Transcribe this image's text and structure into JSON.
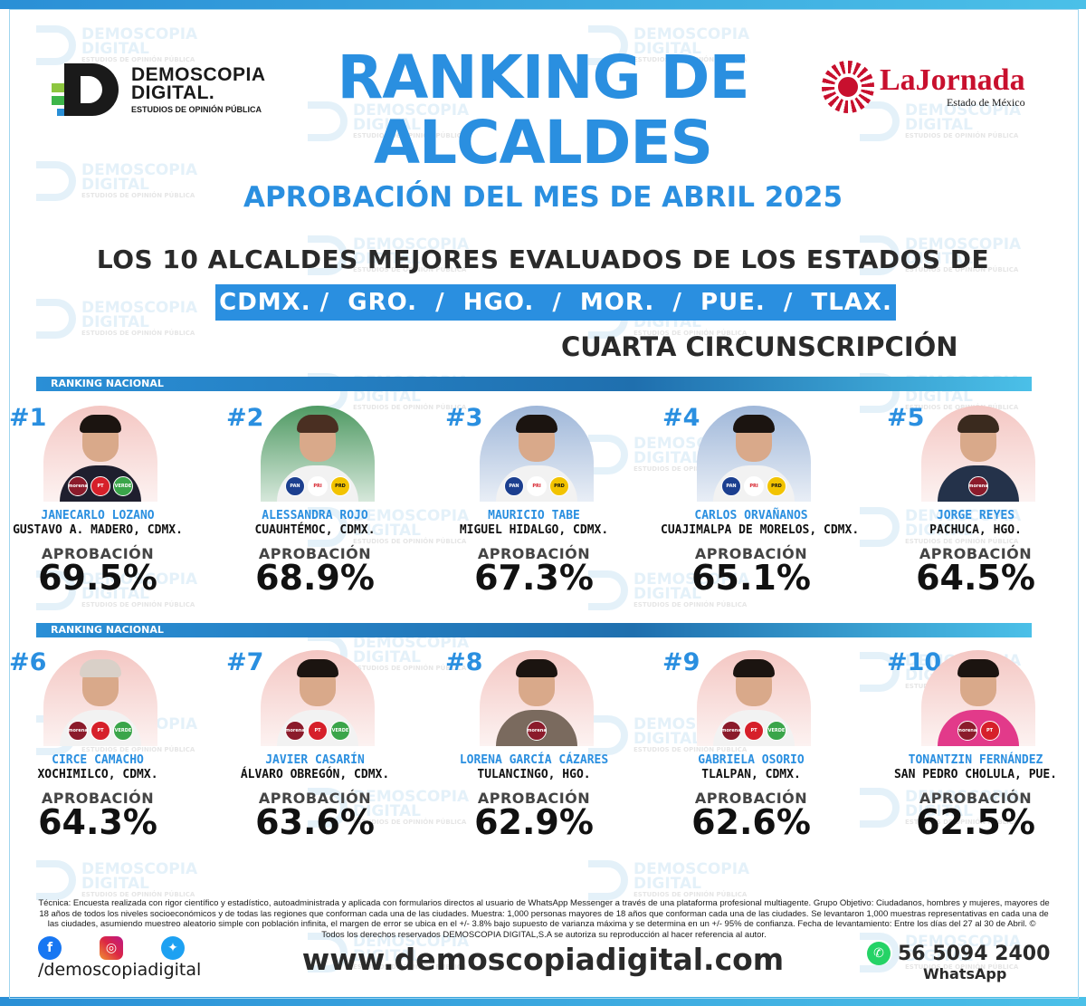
{
  "watermark": {
    "line1": "DEMOSCOPIA",
    "line2": "DIGITAL",
    "line3": "ESTUDIOS DE OPINIÓN PÚBLICA"
  },
  "logo_left": {
    "line1": "DEMOSCOPIA",
    "line2": "DIGITAL.",
    "line3": "ESTUDIOS DE OPINIÓN PÚBLICA"
  },
  "logo_right": {
    "name": "LaJornada",
    "sub": "Estado de México"
  },
  "header": {
    "title": "RANKING DE ALCALDES",
    "subtitle": "APROBACIÓN DEL MES DE ABRIL 2025",
    "headline": "LOS 10 ALCALDES MEJORES EVALUADOS DE LOS ESTADOS DE",
    "states": "CDMX. /  GRO.  /  HGO.  /  MOR.  /  PUE.  /  TLAX.",
    "circunscripcion": "CUARTA CIRCUNSCRIPCIÓN"
  },
  "ranking_label": "RANKING NACIONAL",
  "approval_label": "APROBACIÓN",
  "accent_color": "#2a8fe0",
  "mayors": [
    {
      "rank": "#1",
      "name": "JANECARLO LOZANO",
      "place": "GUSTAVO A. MADERO, CDMX.",
      "approval": "69.5%",
      "parties": [
        "morena",
        "PT",
        "VERDE"
      ]
    },
    {
      "rank": "#2",
      "name": "ALESSANDRA ROJO",
      "place": "CUAUHTÉMOC, CDMX.",
      "approval": "68.9%",
      "parties": [
        "PAN",
        "PRI",
        "PRD"
      ]
    },
    {
      "rank": "#3",
      "name": "MAURICIO TABE",
      "place": "MIGUEL HIDALGO, CDMX.",
      "approval": "67.3%",
      "parties": [
        "PAN",
        "PRI",
        "PRD"
      ]
    },
    {
      "rank": "#4",
      "name": "CARLOS ORVAÑANOS",
      "place": "CUAJIMALPA DE MORELOS, CDMX.",
      "approval": "65.1%",
      "parties": [
        "PAN",
        "PRI",
        "PRD"
      ]
    },
    {
      "rank": "#5",
      "name": "JORGE REYES",
      "place": "PACHUCA, HGO.",
      "approval": "64.5%",
      "parties": [
        "morena"
      ]
    },
    {
      "rank": "#6",
      "name": "CIRCE CAMACHO",
      "place": "XOCHIMILCO, CDMX.",
      "approval": "64.3%",
      "parties": [
        "morena",
        "PT",
        "VERDE"
      ]
    },
    {
      "rank": "#7",
      "name": "JAVIER CASARÍN",
      "place": "ÁLVARO OBREGÓN, CDMX.",
      "approval": "63.6%",
      "parties": [
        "morena",
        "PT",
        "VERDE"
      ]
    },
    {
      "rank": "#8",
      "name": "LORENA GARCÍA CÁZARES",
      "place": "TULANCINGO, HGO.",
      "approval": "62.9%",
      "parties": [
        "morena"
      ]
    },
    {
      "rank": "#9",
      "name": "GABRIELA OSORIO",
      "place": "TLALPAN, CDMX.",
      "approval": "62.6%",
      "parties": [
        "morena",
        "PT",
        "VERDE"
      ]
    },
    {
      "rank": "#10",
      "name": "TONANTZIN FERNÁNDEZ",
      "place": "SAN PEDRO CHOLULA, PUE.",
      "approval": "62.5%",
      "parties": [
        "morena",
        "PT"
      ]
    }
  ],
  "footer": {
    "technical": "Técnica: Encuesta realizada con rigor científico y estadístico, autoadministrada y aplicada con formularios directos al usuario de WhatsApp Messenger a través de una plataforma profesional multiagente. Grupo Objetivo: Ciudadanos, hombres y mujeres, mayores de 18 años de todos los niveles socioeconómicos y de todas las regiones que conforman cada una de las ciudades. Muestra: 1,000 personas mayores de 18 años que conforman cada una de las ciudades. Se levantaron 1,000 muestras representativas en cada una de las ciudades, asumiendo muestreo aleatorio simple con población infinita, el margen de error se ubica en el +/- 3.8% bajo supuesto de varianza máxima y se determina en un +/- 95% de confianza. Fecha de levantamiento: Entre los días del 27 al 30 de Abril. © Todos los derechos reservados DEMOSCOPIA DIGITAL,S.A se autoriza su reproducción al hacer referencia al autor.",
    "handle": "/demoscopiadigital",
    "website": "www.demoscopiadigital.com",
    "phone": "56 5094 2400",
    "whatsapp_label": "WhatsApp",
    "social_icons": [
      "facebook-icon",
      "instagram-icon",
      "twitter-icon"
    ]
  }
}
